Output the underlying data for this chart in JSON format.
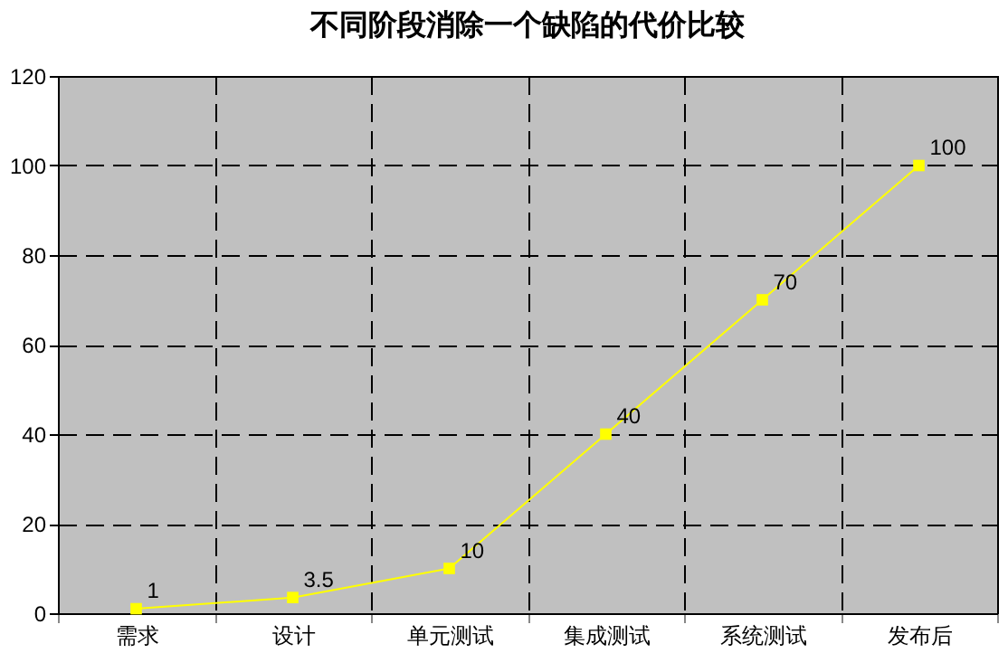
{
  "chart_data": {
    "type": "line",
    "title": "不同阶段消除一个缺陷的代价比较",
    "categories": [
      "需求",
      "设计",
      "单元测试",
      "集成测试",
      "系统测试",
      "发布后"
    ],
    "series": [
      {
        "color": "#ffff00",
        "values": [
          1,
          3.5,
          10,
          40,
          70,
          100
        ]
      }
    ],
    "ylim": [
      0,
      120
    ],
    "yticks": [
      0,
      20,
      40,
      60,
      80,
      100,
      120
    ],
    "grid": true,
    "marker": "square",
    "line_style": "solid",
    "data_labels": true
  }
}
